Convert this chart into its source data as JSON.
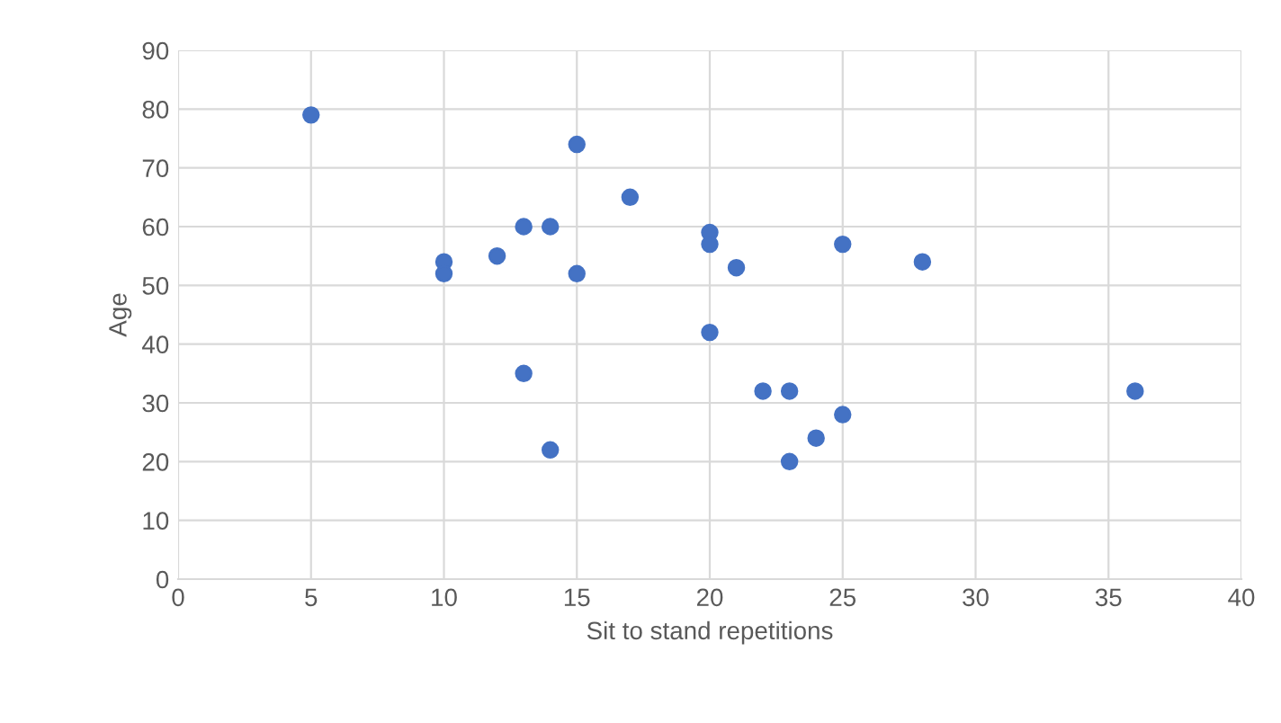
{
  "chart_data": {
    "type": "scatter",
    "xlabel": "Sit to stand repetitions",
    "ylabel": "Age",
    "x": [
      5,
      10,
      10,
      12,
      13,
      14,
      15,
      15,
      17,
      13,
      14,
      20,
      20,
      21,
      20,
      22,
      23,
      23,
      24,
      25,
      25,
      28,
      36
    ],
    "series": [
      {
        "color": "#4472c4",
        "values": [
          79,
          54,
          52,
          55,
          60,
          60,
          74,
          52,
          65,
          35,
          22,
          59,
          57,
          53,
          42,
          32,
          32,
          20,
          24,
          28,
          57,
          54,
          32
        ]
      }
    ],
    "xlim": [
      0,
      40
    ],
    "xticks": [
      0,
      5,
      10,
      15,
      20,
      25,
      30,
      35,
      40
    ],
    "ylim": [
      0,
      90
    ],
    "yticks": [
      0,
      10,
      20,
      30,
      40,
      50,
      60,
      70,
      80,
      90
    ],
    "grid": true,
    "marker": "circle",
    "legend": false
  }
}
